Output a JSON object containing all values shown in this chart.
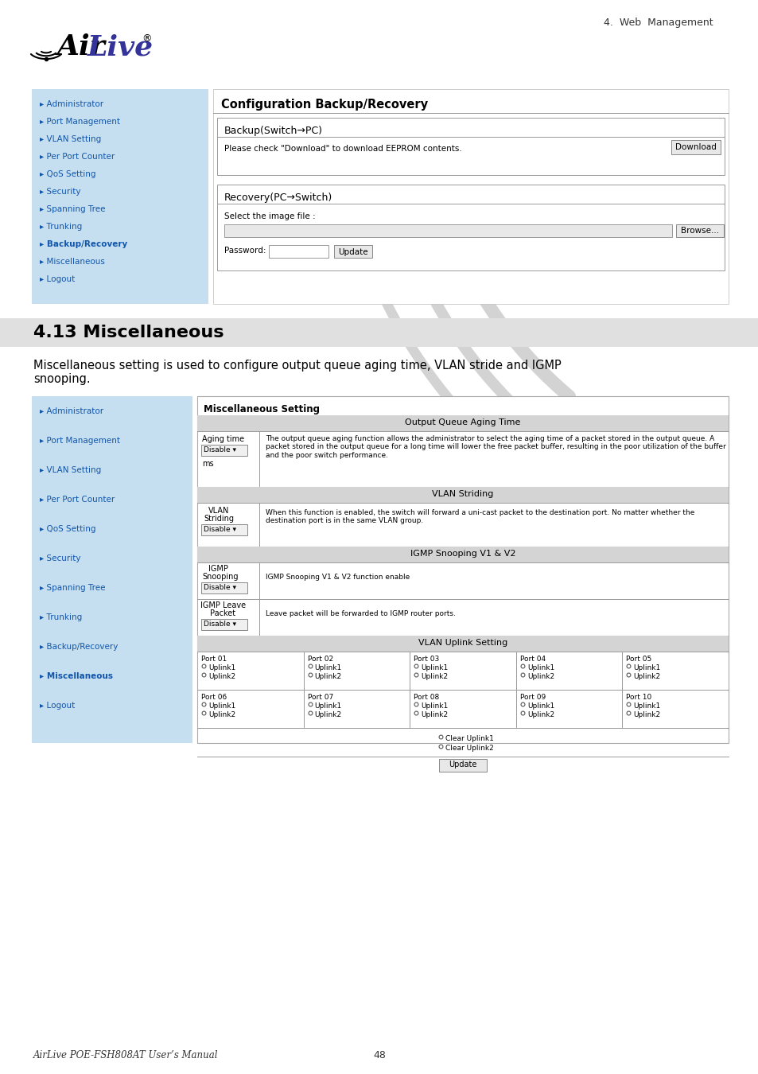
{
  "page_bg": "#ffffff",
  "header_text": "4.  Web  Management",
  "section_heading": "4.13 Miscellaneous",
  "intro_text": "Miscellaneous setting is used to configure output queue aging time, VLAN stride and IGMP\nsnooping.",
  "sidebar_bg": "#c5dff0",
  "sidebar_items_top": [
    "Administrator",
    "Port Management",
    "VLAN Setting",
    "Per Port Counter",
    "QoS Setting",
    "Security",
    "Spanning Tree",
    "Trunking",
    "Backup/Recovery",
    "Miscellaneous",
    "Logout"
  ],
  "sidebar_items_bot": [
    "Administrator",
    "Port Management",
    "VLAN Setting",
    "Per Port Counter",
    "QoS Setting",
    "Security",
    "Spanning Tree",
    "Trunking",
    "Backup/Recovery",
    "Miscellaneous",
    "Logout"
  ],
  "config_title": "Configuration Backup/Recovery",
  "backup_label": "Backup(Switch→PC)",
  "backup_desc": "Please check \"Download\" to download EEPROM contents.",
  "download_btn": "Download",
  "recovery_label": "Recovery(PC→Switch)",
  "select_file_label": "Select the image file :",
  "browse_btn": "Browse...",
  "password_label": "Password:",
  "update_btn": "Update",
  "misc_setting_title": "Miscellaneous Setting",
  "output_queue_header": "Output Queue Aging Time",
  "aging_desc": "The output queue aging function allows the administrator to select the aging time of a packet stored in the output queue. A\npacket stored in the output queue for a long time will lower the free packet buffer, resulting in the poor utilization of the buffer\nand the poor switch performance.",
  "vlan_striding_header": "VLAN Striding",
  "vlan_desc": "When this function is enabled, the switch will forward a uni-cast packet to the destination port. No matter whether the\ndestination port is in the same VLAN group.",
  "igmp_header": "IGMP Snooping V1 & V2",
  "igmp_desc": "IGMP Snooping V1 & V2 function enable",
  "igmp_leave_desc": "Leave packet will be forwarded to IGMP router ports.",
  "vlan_uplink_header": "VLAN Uplink Setting",
  "ports_row1": [
    "Port 01",
    "Port 02",
    "Port 03",
    "Port 04",
    "Port 05"
  ],
  "ports_row2": [
    "Port 06",
    "Port 07",
    "Port 08",
    "Port 09",
    "Port 10"
  ],
  "footer_left": "AirLive POE-FSH808AT User’s Manual",
  "footer_page": "48",
  "link_color": "#1155aa",
  "bold_link": "Backup/Recovery",
  "bold_link_bot": "Miscellaneous",
  "gray_header": "#d4d4d4",
  "table_border": "#999999",
  "curve_color": "#cccccc"
}
